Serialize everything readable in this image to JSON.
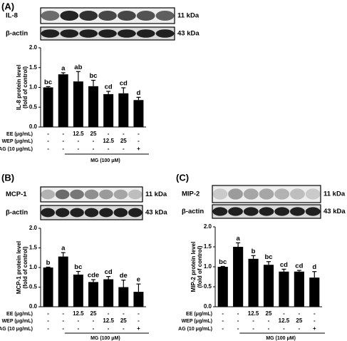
{
  "chart_data": [
    {
      "type": "bar",
      "panel": "(A)",
      "blots": [
        {
          "label": "IL-8",
          "size": "11 kDa"
        },
        {
          "label": "β-actin",
          "size": "43 kDa"
        }
      ],
      "y_label": [
        "IL-8 protein level",
        "(fold of control)"
      ],
      "values": [
        1.0,
        1.33,
        1.15,
        1.03,
        0.83,
        0.85,
        0.68
      ],
      "errors": [
        0.02,
        0.04,
        0.25,
        0.15,
        0.07,
        0.14,
        0.07
      ],
      "letters": [
        "bc",
        "a",
        "ab",
        "bc",
        "cd",
        "cd",
        "d"
      ],
      "color": "#000000",
      "ylim": [
        0,
        2
      ],
      "yticks": [
        {
          "value": 0,
          "label": "0.0"
        },
        0.5,
        {
          "value": 1,
          "label": "1.0"
        },
        1.5,
        {
          "value": 2,
          "label": "2.0"
        }
      ],
      "treatments": [
        {
          "name": "EE (μg/mL)",
          "levels": [
            "-",
            "-",
            "12.5",
            "25",
            "-",
            "-",
            "-"
          ]
        },
        {
          "name": "WEP (μg/mL)",
          "levels": [
            "-",
            "-",
            "-",
            "-",
            "12.5",
            "25",
            "-"
          ]
        },
        {
          "name": "AG (10 μg/mL)",
          "levels": [
            "-",
            "-",
            "-",
            "-",
            "-",
            "-",
            "+"
          ]
        }
      ],
      "group_label": "MG (100 μM)"
    },
    {
      "type": "bar",
      "panel": "(B)",
      "blots": [
        {
          "label": "MCP-1",
          "size": "11 kDa"
        },
        {
          "label": "β-actin",
          "size": "43 kDa"
        }
      ],
      "y_label": [
        "MCP-1 protein level",
        "(fold of control)"
      ],
      "values": [
        1.0,
        1.28,
        0.82,
        0.63,
        0.7,
        0.5,
        0.38
      ],
      "errors": [
        0.01,
        0.1,
        0.08,
        0.06,
        0.07,
        0.18,
        0.2
      ],
      "letters": [
        "b",
        "a",
        "bc",
        "cde",
        "cd",
        "de",
        "e"
      ],
      "color": "#000000",
      "ylim": [
        0,
        2
      ],
      "yticks": [
        {
          "value": 0,
          "label": "0.0"
        },
        0.5,
        {
          "value": 1,
          "label": "1.0"
        },
        1.5,
        {
          "value": 2,
          "label": "2.0"
        }
      ],
      "treatments": [
        {
          "name": "EE (μg/mL)",
          "levels": [
            "-",
            "-",
            "12.5",
            "25",
            "-",
            "-",
            "-"
          ]
        },
        {
          "name": "WEP (μg/mL)",
          "levels": [
            "-",
            "-",
            "-",
            "-",
            "12.5",
            "25",
            "-"
          ]
        },
        {
          "name": "AG (10 μg/mL)",
          "levels": [
            "-",
            "-",
            "-",
            "-",
            "-",
            "-",
            "+"
          ]
        }
      ],
      "group_label": "MG (100 μM)"
    },
    {
      "type": "bar",
      "panel": "(C)",
      "blots": [
        {
          "label": "MIP-2",
          "size": "11 kDa"
        },
        {
          "label": "β-actin",
          "size": "43 kDa"
        }
      ],
      "y_label": [
        "MIP-2 protein level",
        "(fold of control)"
      ],
      "values": [
        1.0,
        1.5,
        1.2,
        1.05,
        0.88,
        0.88,
        0.73
      ],
      "errors": [
        0.01,
        0.1,
        0.08,
        0.08,
        0.06,
        0.03,
        0.15
      ],
      "letters": [
        "bc",
        "a",
        "b",
        "bc",
        "cd",
        "cd",
        "d"
      ],
      "color": "#000000",
      "ylim": [
        0,
        2
      ],
      "yticks": [
        {
          "value": 0,
          "label": "0.0"
        },
        0.5,
        {
          "value": 1,
          "label": "1.0"
        },
        1.5,
        {
          "value": 2,
          "label": "2.0"
        }
      ],
      "treatments": [
        {
          "name": "EE (μg/mL)",
          "levels": [
            "-",
            "-",
            "12.5",
            "25",
            "-",
            "-",
            "-"
          ]
        },
        {
          "name": "WEP (μg/mL)",
          "levels": [
            "-",
            "-",
            "-",
            "-",
            "12.5",
            "25",
            "-"
          ]
        },
        {
          "name": "AG (10 μg/mL)",
          "levels": [
            "-",
            "-",
            "-",
            "-",
            "-",
            "-",
            "+"
          ]
        }
      ],
      "group_label": "MG (100 μM)"
    }
  ]
}
